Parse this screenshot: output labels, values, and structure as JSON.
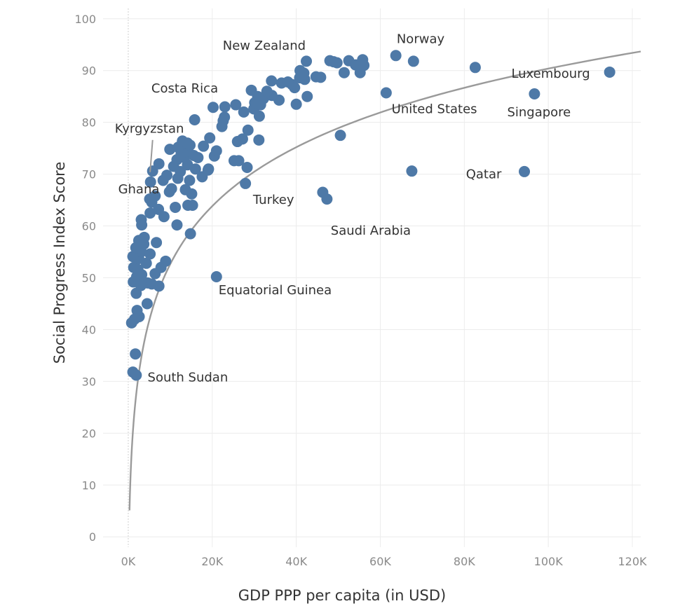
{
  "chart_data": {
    "type": "scatter",
    "xlabel": "GDP PPP per capita (in USD)",
    "ylabel": "Social Progress Index Score",
    "xlim": [
      -6000,
      122000
    ],
    "ylim": [
      -2,
      102
    ],
    "x_ticks": [
      {
        "value": 0,
        "label": "0K"
      },
      {
        "value": 20000,
        "label": "20K"
      },
      {
        "value": 40000,
        "label": "40K"
      },
      {
        "value": 60000,
        "label": "60K"
      },
      {
        "value": 80000,
        "label": "80K"
      },
      {
        "value": 100000,
        "label": "100K"
      },
      {
        "value": 120000,
        "label": "120K"
      }
    ],
    "y_ticks": [
      {
        "value": 0,
        "label": "0"
      },
      {
        "value": 10,
        "label": "10"
      },
      {
        "value": 20,
        "label": "20"
      },
      {
        "value": 30,
        "label": "30"
      },
      {
        "value": 40,
        "label": "40"
      },
      {
        "value": 50,
        "label": "50"
      },
      {
        "value": 60,
        "label": "60"
      },
      {
        "value": 70,
        "label": "70"
      },
      {
        "value": 80,
        "label": "80"
      },
      {
        "value": 90,
        "label": "90"
      },
      {
        "value": 100,
        "label": "100"
      }
    ],
    "grid": true,
    "legend": "none",
    "point_color": "#4e79a7",
    "trendline": {
      "type": "logarithmic",
      "color": "#9a9a9a",
      "x_range": [
        300,
        122000
      ],
      "intercept": 3.0,
      "slope": 8.0
    },
    "points": [
      [
        1100,
        31.8
      ],
      [
        1900,
        31.2
      ],
      [
        1700,
        35.3
      ],
      [
        800,
        41.3
      ],
      [
        1500,
        42.0
      ],
      [
        2600,
        42.5
      ],
      [
        2100,
        43.7
      ],
      [
        4500,
        45.0
      ],
      [
        1900,
        47.0
      ],
      [
        1200,
        49.2
      ],
      [
        3000,
        48.5
      ],
      [
        4600,
        49.0
      ],
      [
        5600,
        48.8
      ],
      [
        7300,
        48.4
      ],
      [
        2000,
        50.2
      ],
      [
        3200,
        50.6
      ],
      [
        6400,
        50.8
      ],
      [
        1300,
        52.0
      ],
      [
        2300,
        51.6
      ],
      [
        7800,
        52.0
      ],
      [
        4300,
        52.8
      ],
      [
        8900,
        53.2
      ],
      [
        1100,
        54.1
      ],
      [
        2500,
        53.7
      ],
      [
        3100,
        55.0
      ],
      [
        5200,
        54.6
      ],
      [
        1800,
        55.8
      ],
      [
        3700,
        56.5
      ],
      [
        6700,
        56.8
      ],
      [
        2500,
        57.2
      ],
      [
        3800,
        57.8
      ],
      [
        3200,
        60.2
      ],
      [
        3100,
        61.2
      ],
      [
        8500,
        61.8
      ],
      [
        11600,
        60.2
      ],
      [
        14800,
        58.5
      ],
      [
        5200,
        62.5
      ],
      [
        7200,
        63.2
      ],
      [
        11200,
        63.6
      ],
      [
        14200,
        64.0
      ],
      [
        15300,
        64.0
      ],
      [
        5600,
        64.6
      ],
      [
        5100,
        65.2
      ],
      [
        6400,
        65.8
      ],
      [
        15100,
        66.2
      ],
      [
        9800,
        66.6
      ],
      [
        10300,
        67.2
      ],
      [
        13600,
        67.0
      ],
      [
        5300,
        68.5
      ],
      [
        8300,
        68.8
      ],
      [
        11800,
        69.2
      ],
      [
        14600,
        68.8
      ],
      [
        17600,
        69.5
      ],
      [
        9200,
        69.8
      ],
      [
        12400,
        70.5
      ],
      [
        16000,
        71.0
      ],
      [
        19000,
        70.8
      ],
      [
        5800,
        70.6
      ],
      [
        7300,
        72.0
      ],
      [
        10800,
        71.5
      ],
      [
        14100,
        71.8
      ],
      [
        19100,
        71.0
      ],
      [
        11600,
        72.8
      ],
      [
        13400,
        73.2
      ],
      [
        15600,
        73.6
      ],
      [
        16600,
        73.2
      ],
      [
        20500,
        73.5
      ],
      [
        12600,
        74.0
      ],
      [
        14200,
        74.5
      ],
      [
        9900,
        74.8
      ],
      [
        11900,
        75.2
      ],
      [
        14700,
        75.6
      ],
      [
        17900,
        75.4
      ],
      [
        21000,
        74.5
      ],
      [
        12900,
        76.4
      ],
      [
        14100,
        76.0
      ],
      [
        19400,
        77.0
      ],
      [
        15800,
        80.5
      ],
      [
        25200,
        72.6
      ],
      [
        26300,
        72.6
      ],
      [
        28300,
        71.3
      ],
      [
        27900,
        68.2
      ],
      [
        26000,
        76.3
      ],
      [
        27200,
        76.8
      ],
      [
        28500,
        78.5
      ],
      [
        31100,
        76.6
      ],
      [
        22300,
        79.2
      ],
      [
        22600,
        80.3
      ],
      [
        22900,
        81.0
      ],
      [
        27500,
        82.0
      ],
      [
        29900,
        82.6
      ],
      [
        31500,
        83.4
      ],
      [
        31200,
        81.2
      ],
      [
        32200,
        84.6
      ],
      [
        25600,
        83.4
      ],
      [
        23000,
        83.0
      ],
      [
        20200,
        82.9
      ],
      [
        30100,
        83.8
      ],
      [
        35900,
        84.3
      ],
      [
        40000,
        83.5
      ],
      [
        42600,
        85.0
      ],
      [
        34200,
        85.2
      ],
      [
        29300,
        86.2
      ],
      [
        30800,
        85.0
      ],
      [
        33000,
        86.0
      ],
      [
        34100,
        88.0
      ],
      [
        36500,
        87.6
      ],
      [
        38000,
        87.8
      ],
      [
        39000,
        87.3
      ],
      [
        39600,
        86.7
      ],
      [
        40800,
        88.6
      ],
      [
        41800,
        89.5
      ],
      [
        42000,
        88.3
      ],
      [
        40900,
        90.0
      ],
      [
        42400,
        91.8
      ],
      [
        44700,
        88.8
      ],
      [
        45800,
        88.7
      ],
      [
        48000,
        91.9
      ],
      [
        48900,
        91.7
      ],
      [
        49700,
        91.5
      ],
      [
        51400,
        89.6
      ],
      [
        52500,
        91.9
      ],
      [
        54100,
        91.1
      ],
      [
        55200,
        89.6
      ],
      [
        55800,
        92.1
      ],
      [
        56100,
        91.0
      ],
      [
        63700,
        92.9
      ],
      [
        67900,
        91.8
      ],
      [
        82600,
        90.6
      ],
      [
        61400,
        85.7
      ],
      [
        96700,
        85.5
      ],
      [
        114600,
        89.7
      ],
      [
        50500,
        77.5
      ],
      [
        67500,
        70.6
      ],
      [
        94300,
        70.5
      ],
      [
        46300,
        66.5
      ],
      [
        47300,
        65.2
      ],
      [
        21000,
        50.2
      ]
    ],
    "annotations": [
      {
        "id": "south-sudan",
        "text": "South Sudan",
        "x": 4600,
        "y": 30.0
      },
      {
        "id": "equatorial-guinea",
        "text": "Equatorial Guinea",
        "x": 21500,
        "y": 46.8
      },
      {
        "id": "ghana",
        "text": "Ghana",
        "x": -2400,
        "y": 66.3
      },
      {
        "id": "kyrgyzstan",
        "text": "Kyrgyzstan",
        "x": -3200,
        "y": 78.0
      },
      {
        "id": "costa-rica",
        "text": "Costa Rica",
        "x": 5500,
        "y": 85.8
      },
      {
        "id": "new-zealand",
        "text": "New Zealand",
        "x": 22500,
        "y": 94.0
      },
      {
        "id": "norway",
        "text": "Norway",
        "x": 63900,
        "y": 95.3
      },
      {
        "id": "turkey",
        "text": "Turkey",
        "x": 29700,
        "y": 64.3
      },
      {
        "id": "saudi-arabia",
        "text": "Saudi Arabia",
        "x": 48200,
        "y": 58.3
      },
      {
        "id": "united-states",
        "text": "United States",
        "x": 62700,
        "y": 81.8
      },
      {
        "id": "singapore",
        "text": "Singapore",
        "x": 90200,
        "y": 81.2
      },
      {
        "id": "luxembourg",
        "text": "Luxembourg",
        "x": 91200,
        "y": 88.6
      },
      {
        "id": "qatar",
        "text": "Qatar",
        "x": 80400,
        "y": 69.2
      }
    ],
    "leaders": [
      {
        "id": "kyrgyzstan",
        "x1": 5200,
        "y1": 70.4,
        "x2": 5800,
        "y2": 76.6
      }
    ]
  }
}
